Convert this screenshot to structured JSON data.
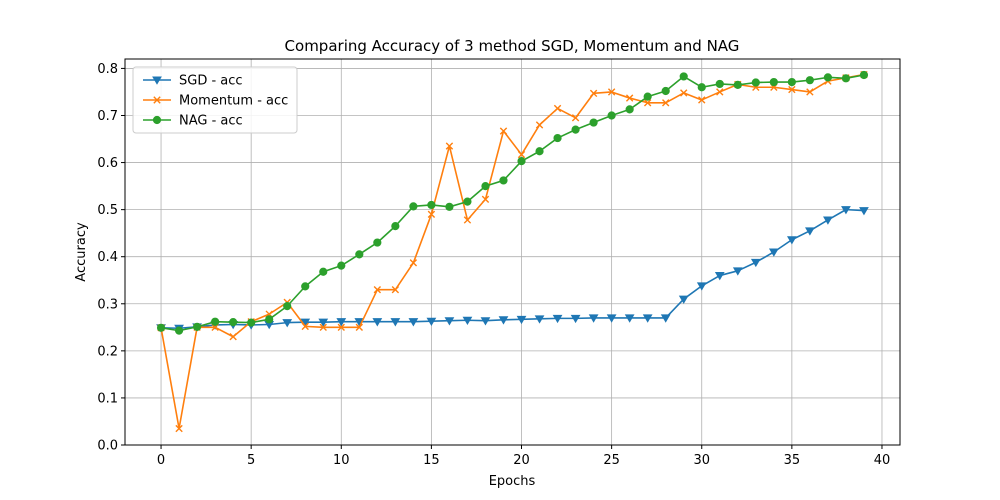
{
  "chart_data": {
    "type": "line",
    "title": "Comparing Accuracy of 3 method SGD, Momentum and NAG",
    "xlabel": "Epochs",
    "ylabel": "Accuracy",
    "xlim": [
      -2,
      41
    ],
    "ylim": [
      0,
      0.82
    ],
    "xticks": [
      0,
      5,
      10,
      15,
      20,
      25,
      30,
      35,
      40
    ],
    "yticks": [
      0.0,
      0.1,
      0.2,
      0.3,
      0.4,
      0.5,
      0.6,
      0.7,
      0.8
    ],
    "grid": true,
    "legend_position": "top-left",
    "x": [
      0,
      1,
      2,
      3,
      4,
      5,
      6,
      7,
      8,
      9,
      10,
      11,
      12,
      13,
      14,
      15,
      16,
      17,
      18,
      19,
      20,
      21,
      22,
      23,
      24,
      25,
      26,
      27,
      28,
      29,
      30,
      31,
      32,
      33,
      34,
      35,
      36,
      37,
      38,
      39
    ],
    "series": [
      {
        "name": "SGD - acc",
        "color": "#1f77b4",
        "marker": "triangle-down",
        "values": [
          0.249,
          0.248,
          0.251,
          0.255,
          0.256,
          0.255,
          0.256,
          0.26,
          0.261,
          0.261,
          0.262,
          0.262,
          0.262,
          0.262,
          0.262,
          0.263,
          0.264,
          0.265,
          0.264,
          0.266,
          0.267,
          0.268,
          0.269,
          0.269,
          0.27,
          0.27,
          0.27,
          0.27,
          0.27,
          0.31,
          0.338,
          0.36,
          0.37,
          0.388,
          0.41,
          0.436,
          0.455,
          0.478,
          0.5,
          0.498
        ]
      },
      {
        "name": "Momentum - acc",
        "color": "#ff7f0e",
        "marker": "x",
        "values": [
          0.249,
          0.035,
          0.25,
          0.25,
          0.23,
          0.262,
          0.278,
          0.303,
          0.252,
          0.25,
          0.25,
          0.25,
          0.33,
          0.33,
          0.387,
          0.49,
          0.635,
          0.478,
          0.522,
          0.667,
          0.617,
          0.68,
          0.715,
          0.695,
          0.747,
          0.75,
          0.737,
          0.727,
          0.727,
          0.748,
          0.733,
          0.75,
          0.766,
          0.76,
          0.76,
          0.755,
          0.75,
          0.773,
          0.78,
          0.787
        ]
      },
      {
        "name": "NAG - acc",
        "color": "#2ca02c",
        "marker": "circle",
        "values": [
          0.249,
          0.243,
          0.251,
          0.262,
          0.261,
          0.26,
          0.267,
          0.295,
          0.337,
          0.368,
          0.381,
          0.405,
          0.43,
          0.465,
          0.507,
          0.51,
          0.506,
          0.517,
          0.55,
          0.562,
          0.603,
          0.624,
          0.652,
          0.67,
          0.685,
          0.7,
          0.713,
          0.74,
          0.752,
          0.783,
          0.76,
          0.767,
          0.765,
          0.77,
          0.771,
          0.771,
          0.775,
          0.781,
          0.779,
          0.786
        ]
      }
    ]
  }
}
